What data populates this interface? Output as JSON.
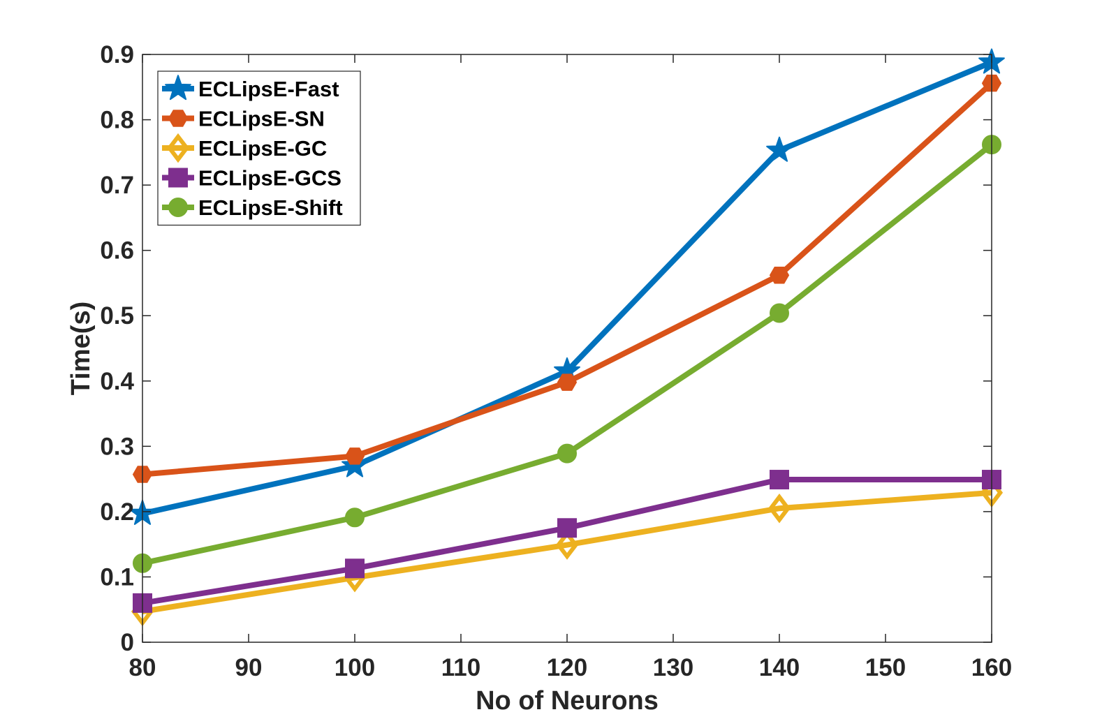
{
  "chart_data": {
    "type": "line",
    "title": "",
    "xlabel": "No of Neurons",
    "ylabel": "Time(s)",
    "xlim": [
      80,
      160
    ],
    "ylim": [
      0,
      0.9
    ],
    "x_ticks": [
      "80",
      "90",
      "100",
      "110",
      "120",
      "130",
      "140",
      "150",
      "160"
    ],
    "y_ticks": [
      "0",
      "0.1",
      "0.2",
      "0.3",
      "0.4",
      "0.5",
      "0.6",
      "0.7",
      "0.8",
      "0.9"
    ],
    "x": [
      80,
      100,
      120,
      140,
      160
    ],
    "grid": false,
    "legend_position": "top-left",
    "series": [
      {
        "name": "ECLipsE-Fast",
        "color": "#0072BD",
        "marker": "star",
        "values": [
          0.197,
          0.27,
          0.415,
          0.753,
          0.888
        ]
      },
      {
        "name": "ECLipsE-SN",
        "color": "#D95319",
        "marker": "hexagon",
        "values": [
          0.257,
          0.285,
          0.398,
          0.562,
          0.856
        ]
      },
      {
        "name": "ECLipsE-GC",
        "color": "#EDB120",
        "marker": "diamond",
        "values": [
          0.047,
          0.099,
          0.149,
          0.205,
          0.229
        ]
      },
      {
        "name": "ECLipsE-GCS",
        "color": "#7E2F8E",
        "marker": "square",
        "values": [
          0.06,
          0.113,
          0.175,
          0.249,
          0.249
        ]
      },
      {
        "name": "ECLipsE-Shift",
        "color": "#77AC30",
        "marker": "circle",
        "values": [
          0.121,
          0.191,
          0.289,
          0.504,
          0.762
        ]
      }
    ]
  }
}
